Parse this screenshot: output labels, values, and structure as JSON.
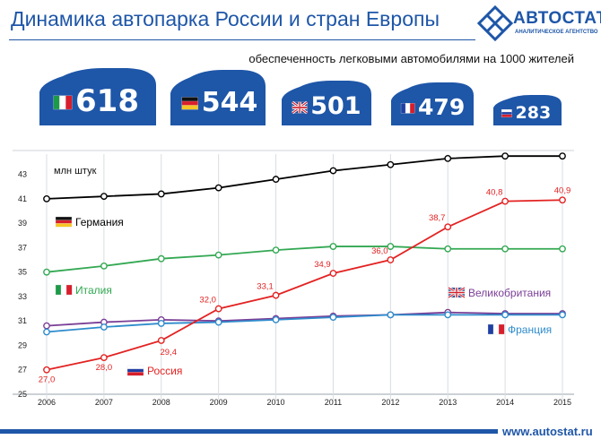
{
  "header": {
    "title": "Динамика автопарка России и стран Европы",
    "subtitle": "обеспеченность легковыми автомобилями на 1000 жителей",
    "logo_name": "АВТОСТАТ",
    "logo_tagline": "АНАЛИТИЧЕСКОЕ АГЕНТСТВО",
    "accent_color": "#1e56a8"
  },
  "cars": [
    {
      "country": "Италия",
      "value": "618",
      "flag": "italy-flag"
    },
    {
      "country": "Германия",
      "value": "544",
      "flag": "germany-flag"
    },
    {
      "country": "Великобритания",
      "value": "501",
      "flag": "uk-flag"
    },
    {
      "country": "Франция",
      "value": "479",
      "flag": "france-flag"
    },
    {
      "country": "Россия",
      "value": "283",
      "flag": "russia-flag"
    }
  ],
  "footer": {
    "url": "www.autostat.ru"
  },
  "chart_data": {
    "type": "line",
    "ylabel": "млн штук",
    "x": [
      2006,
      2007,
      2008,
      2009,
      2010,
      2011,
      2012,
      2013,
      2014,
      2015
    ],
    "xlim": [
      2006,
      2015
    ],
    "ylim": [
      25,
      44
    ],
    "y_ticks": [
      25,
      27,
      29,
      31,
      33,
      35,
      37,
      39,
      41,
      43
    ],
    "grid": "vertical",
    "series": [
      {
        "name": "Германия",
        "color": "#000000",
        "flag": "germany-flag",
        "values": [
          41.0,
          41.2,
          41.4,
          41.9,
          42.6,
          43.3,
          43.8,
          44.3,
          44.5,
          44.5
        ]
      },
      {
        "name": "Италия",
        "color": "#33a852",
        "flag": "italy-flag",
        "values": [
          35.0,
          35.5,
          36.1,
          36.4,
          36.8,
          37.1,
          37.1,
          36.9,
          36.9,
          36.9
        ]
      },
      {
        "name": "Великобритания",
        "color": "#7a3e96",
        "flag": "uk-flag",
        "values": [
          30.6,
          30.9,
          31.1,
          31.0,
          31.2,
          31.4,
          31.5,
          31.7,
          31.6,
          31.6
        ]
      },
      {
        "name": "Франция",
        "color": "#2e8ccc",
        "flag": "france-flag",
        "values": [
          30.1,
          30.5,
          30.8,
          30.9,
          31.1,
          31.3,
          31.5,
          31.5,
          31.5,
          31.5
        ]
      },
      {
        "name": "Россия",
        "color": "#e32222",
        "flag": "russia-flag",
        "values": [
          27.0,
          28.0,
          29.4,
          32.0,
          33.1,
          34.9,
          36.0,
          38.7,
          40.8,
          40.9
        ],
        "labels": [
          "27,0",
          "28,0",
          "29,4",
          "32,0",
          "33,1",
          "34,9",
          "36,0",
          "38,7",
          "40,8",
          "40,9"
        ]
      }
    ]
  }
}
